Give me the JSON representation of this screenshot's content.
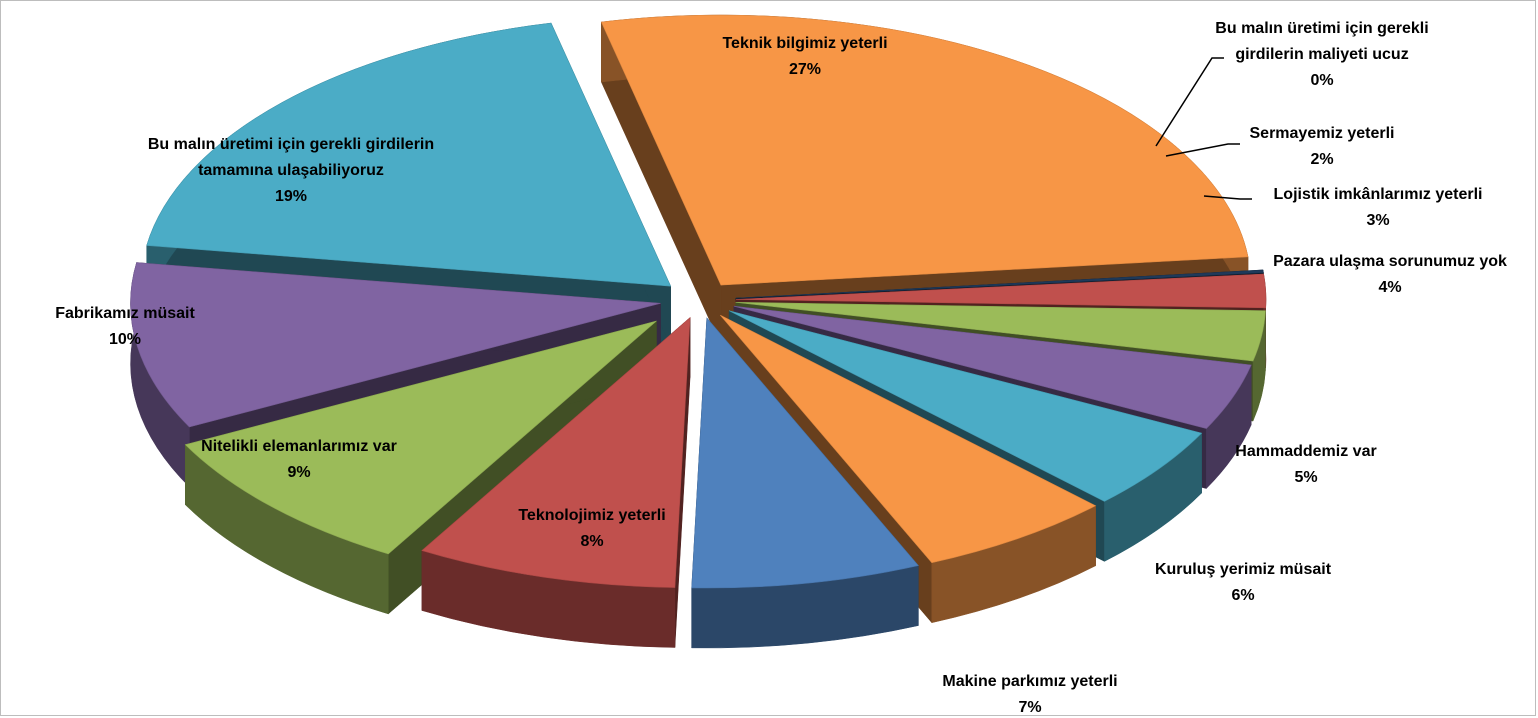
{
  "chart_data": {
    "type": "pie",
    "title": "",
    "slices": [
      {
        "label_lines": [
          "Bu malın üretimi için gerekli",
          "girdilerin maliyeti ucuz"
        ],
        "value": 0,
        "value_label": "0%",
        "color": "#1f3a5a"
      },
      {
        "label_lines": [
          "Sermayemiz yeterli"
        ],
        "value": 2,
        "value_label": "2%",
        "color": "#c0504d"
      },
      {
        "label_lines": [
          "Lojistik imkânlarımız yeterli"
        ],
        "value": 3,
        "value_label": "3%",
        "color": "#9bbb59"
      },
      {
        "label_lines": [
          "Pazara ulaşma sorunumuz yok"
        ],
        "value": 4,
        "value_label": "4%",
        "color": "#8064a2"
      },
      {
        "label_lines": [
          "Hammaddemiz var"
        ],
        "value": 5,
        "value_label": "5%",
        "color": "#4bacc6"
      },
      {
        "label_lines": [
          "Kuruluş yerimiz müsait"
        ],
        "value": 6,
        "value_label": "6%",
        "color": "#f79646"
      },
      {
        "label_lines": [
          "Makine parkımız yeterli"
        ],
        "value": 7,
        "value_label": "7%",
        "color": "#4f81bd"
      },
      {
        "label_lines": [
          "Teknolojimiz yeterli"
        ],
        "value": 8,
        "value_label": "8%",
        "color": "#c0504d"
      },
      {
        "label_lines": [
          "Nitelikli elemanlarımız var"
        ],
        "value": 9,
        "value_label": "9%",
        "color": "#9bbb59"
      },
      {
        "label_lines": [
          "Fabrikamız müsait"
        ],
        "value": 10,
        "value_label": "10%",
        "color": "#8064a2"
      },
      {
        "label_lines": [
          "Bu malın üretimi için gerekli girdilerin",
          "tamamına ulaşabiliyoruz"
        ],
        "value": 19,
        "value_label": "19%",
        "color": "#4bacc6"
      },
      {
        "label_lines": [
          "Teknik bilgimiz yeterli"
        ],
        "value": 27,
        "value_label": "27%",
        "color": "#f79646"
      }
    ]
  }
}
